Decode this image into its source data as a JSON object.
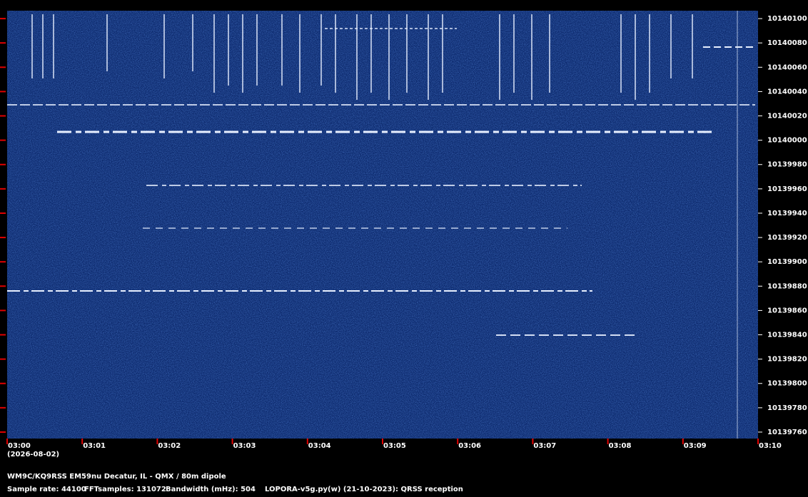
{
  "chart_data": {
    "type": "spectrogram",
    "xlim": [
      0,
      10
    ],
    "xticks": [
      {
        "value": 0,
        "label": "03:00"
      },
      {
        "value": 1,
        "label": "03:01"
      },
      {
        "value": 2,
        "label": "03:02"
      },
      {
        "value": 3,
        "label": "03:03"
      },
      {
        "value": 4,
        "label": "03:04"
      },
      {
        "value": 5,
        "label": "03:05"
      },
      {
        "value": 6,
        "label": "03:06"
      },
      {
        "value": 7,
        "label": "03:07"
      },
      {
        "value": 8,
        "label": "03:08"
      },
      {
        "value": 9,
        "label": "03:09"
      },
      {
        "value": 10,
        "label": "03:10"
      }
    ],
    "date": "(2026-08-02)",
    "ylim": [
      10139754.7,
      10140106.5
    ],
    "yticks": [
      10139760,
      10139780,
      10139800,
      10139820,
      10139840,
      10139860,
      10139880,
      10139900,
      10139920,
      10139940,
      10139960,
      10139980,
      10140000,
      10140020,
      10140040,
      10140060,
      10140080,
      10140100
    ],
    "station": "WM9C/KQ9RSS EM59nu Decatur, IL - QMX / 80m dipole",
    "sample_rate": "Sample rate: 44100",
    "fft_samples": "FFTsamples: 131072",
    "bandwidth": "Bandwidth (mHz): 504",
    "software": "LOPORA-v5g.py(w) (21-10-2023): QRSS reception"
  }
}
